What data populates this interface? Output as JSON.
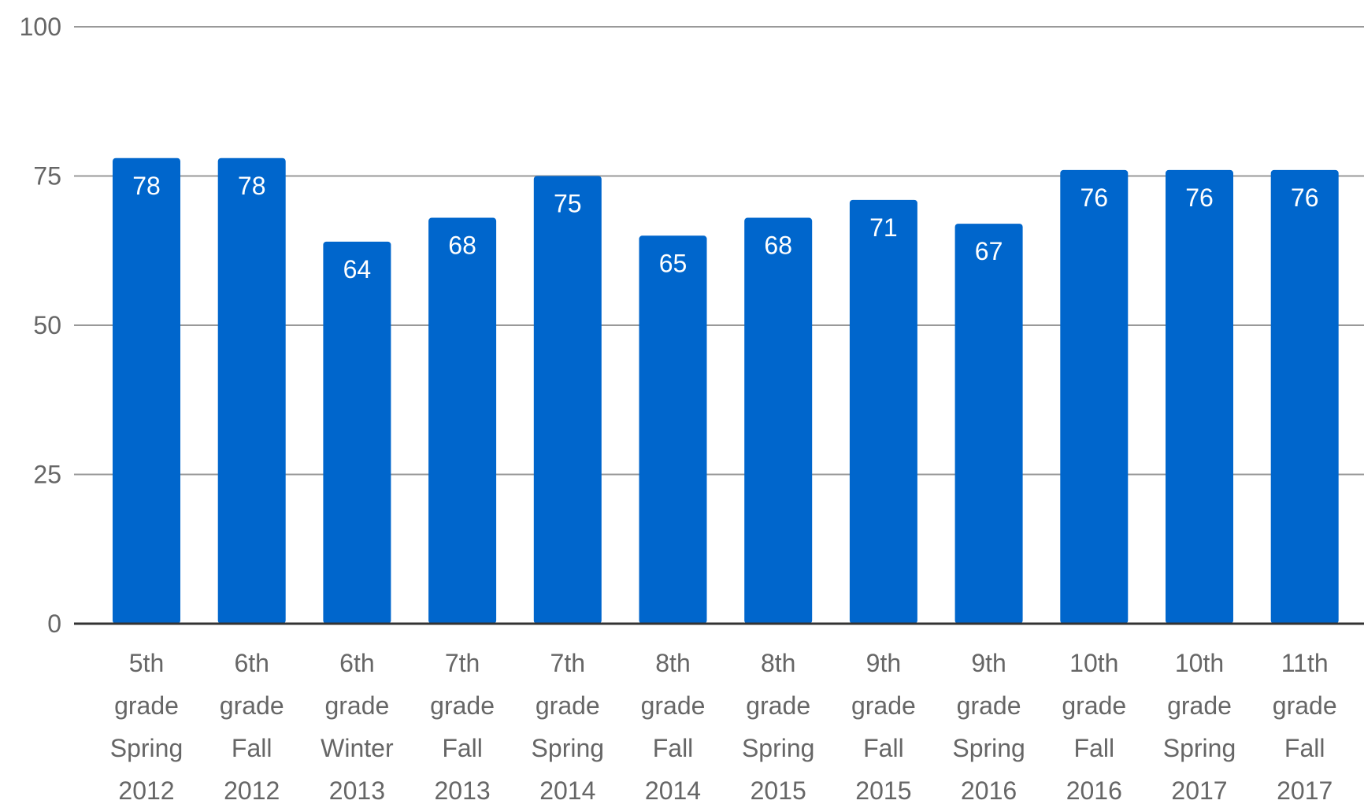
{
  "chart_data": {
    "type": "bar",
    "categories": [
      "5th grade Spring 2012",
      "6th grade Fall 2012",
      "6th grade Winter 2013",
      "7th grade Fall 2013",
      "7th grade Spring 2014",
      "8th grade Fall 2014",
      "8th grade Spring 2015",
      "9th grade Fall 2015",
      "9th grade Spring 2016",
      "10th grade Fall 2016",
      "10th grade Spring 2017",
      "11th grade Fall 2017"
    ],
    "values": [
      78,
      78,
      64,
      68,
      75,
      65,
      68,
      71,
      67,
      76,
      76,
      76
    ],
    "color": "#0066cc",
    "ylim": [
      0,
      100
    ],
    "yticks": [
      0,
      25,
      50,
      75,
      100
    ],
    "grid": true
  }
}
